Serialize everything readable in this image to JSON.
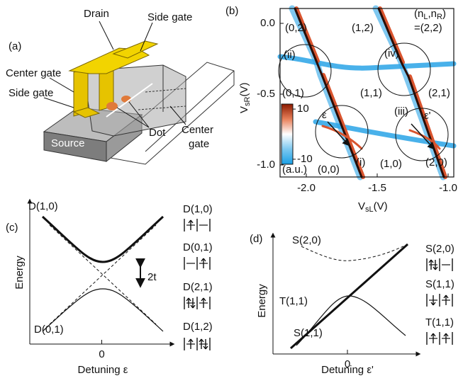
{
  "panel_a": {
    "label": "(a)",
    "drain": "Drain",
    "side_gate_top": "Side gate",
    "center_gate_left": "Center gate",
    "side_gate_left": "Side gate",
    "dot": "Dot",
    "center_gate_right": [
      "Center",
      "gate"
    ],
    "source": "Source"
  },
  "panel_b": {
    "label": "(b)",
    "regions": [
      "(0,2)",
      "(1,2)",
      "(ii)",
      "(iv)",
      "(0,1)",
      "(1,1)",
      "(2,1)",
      "ε",
      "(iii)",
      "ε'",
      "(i)",
      "(1,0)",
      "(2,0)",
      "(0,0)"
    ],
    "state_label": {
      "open": "(n",
      "sub1": "L",
      "mid": ",n",
      "sub2": "R",
      "close": ")",
      "eq": "=(2,2)"
    },
    "xlabel": {
      "main": "V",
      "sub": "sL",
      "unit": "(V)"
    },
    "ylabel": {
      "main": "V",
      "sub": "sR",
      "unit": "(V)"
    },
    "xlim": [
      -2.185,
      -0.96
    ],
    "ylim": [
      -1.085,
      0.105
    ],
    "xticks": [
      {
        "value": -2,
        "label": "-2.0"
      },
      -1.5,
      {
        "value": -1,
        "label": "-1.0"
      }
    ],
    "yticks": [
      {
        "value": 0,
        "label": "0.0"
      },
      -0.5,
      {
        "value": -1,
        "label": "-1.0"
      }
    ],
    "colorbar": {
      "lim": [
        -12,
        12
      ],
      "ticks": [
        10,
        -10
      ],
      "unit": "(a.u.)"
    }
  },
  "panel_c": {
    "label": "(c)",
    "upper": "D(1,0)",
    "lower": "D(0,1)",
    "gap": "2t",
    "ylabel": "Energy",
    "xlabel": "Detuning ε",
    "xlim": [
      -1,
      1
    ],
    "xticks": [
      0
    ],
    "states": [
      "D(1,0)",
      "D(0,1)",
      "D(2,1)",
      "D(1,2)"
    ]
  },
  "panel_d": {
    "label": "(d)",
    "upper": "S(2,0)",
    "triplet": "T(1,1)",
    "lower": "S(1,1)",
    "ylabel": "Energy",
    "xlabel": "Detuning ε'",
    "xlim": [
      -1,
      1
    ],
    "xticks": [
      0
    ],
    "states": [
      "S(2,0)",
      "S(1,1)",
      "T(1,1)"
    ]
  }
}
